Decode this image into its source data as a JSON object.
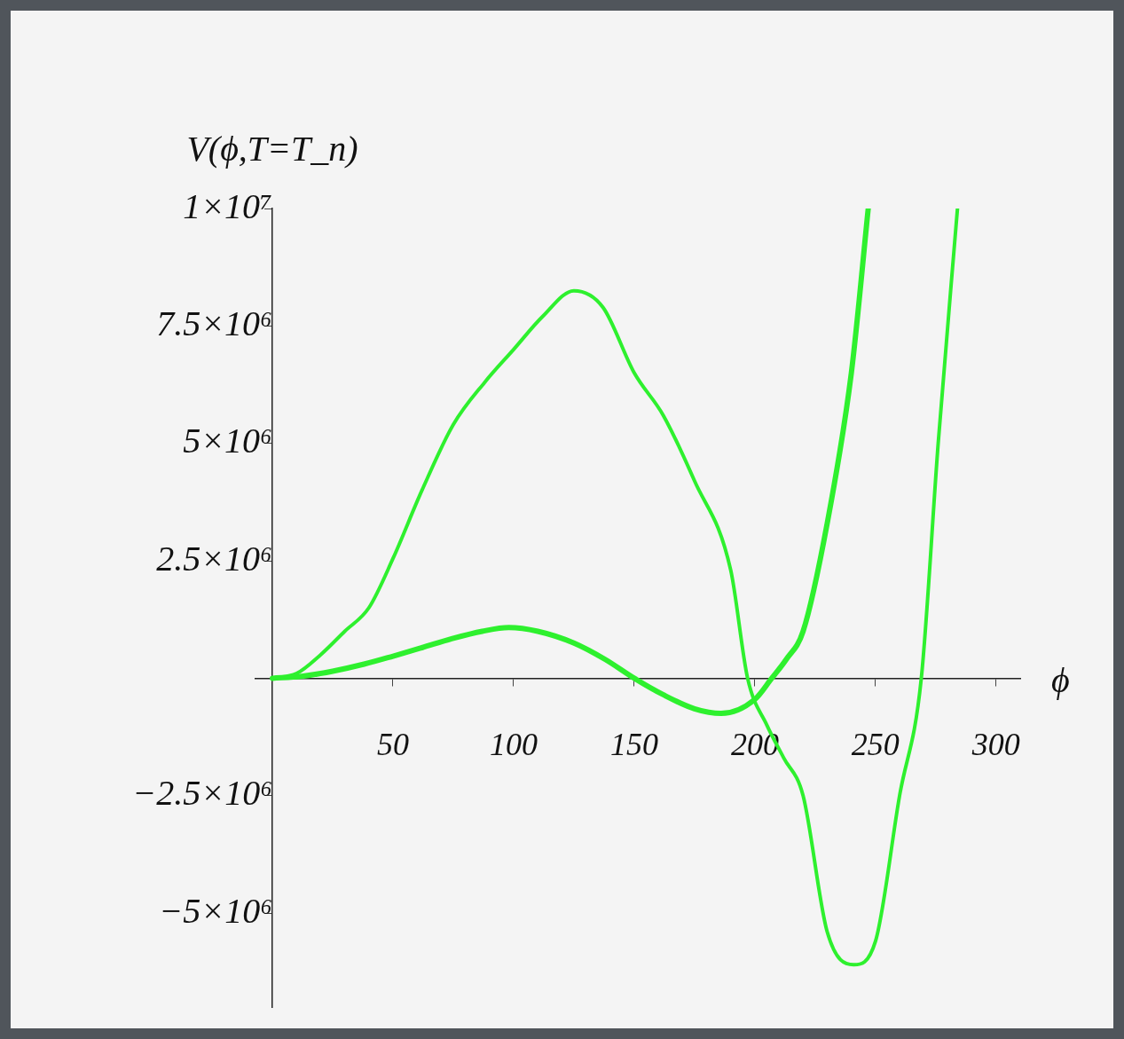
{
  "chart_data": {
    "type": "line",
    "xlabel": "ϕ",
    "ylabel": "V(ϕ,T=T_n)",
    "xlim": [
      -7,
      310
    ],
    "ylim": [
      -7000000,
      10000000
    ],
    "xticks": [
      50,
      100,
      150,
      200,
      250,
      300
    ],
    "yticks": [
      {
        "value": -5000000,
        "label": "−5×10⁶"
      },
      {
        "value": -2500000,
        "label": "−2.5×10⁶"
      },
      {
        "value": 2500000,
        "label": "2.5×10⁶"
      },
      {
        "value": 5000000,
        "label": "5×10⁶"
      },
      {
        "value": 7500000,
        "label": "7.5×10⁶"
      },
      {
        "value": 10000000,
        "label": "1×10⁷"
      }
    ],
    "grid": false,
    "legend": false,
    "marker": "none",
    "line_style": "solid",
    "series": [
      {
        "color": "#2ef02e",
        "x": [
          0,
          10,
          20,
          30,
          40,
          50,
          62,
          75,
          88,
          100,
          112,
          125,
          137,
          150,
          162,
          175,
          190,
          197,
          205,
          212,
          220,
          230,
          241,
          250,
          260,
          269,
          276,
          284
        ],
        "values": [
          0,
          100000,
          500000,
          1000000,
          1500000,
          2550000,
          4000000,
          5400000,
          6300000,
          7000000,
          7700000,
          8250000,
          7900000,
          6500000,
          5600000,
          4200000,
          2300000,
          0,
          -1000000,
          -1700000,
          -2500000,
          -5400000,
          -6100000,
          -5600000,
          -2500000,
          0,
          5000000,
          10000000
        ]
      },
      {
        "color": "#2ef02e",
        "x": [
          0,
          12,
          25,
          38,
          50,
          62,
          75,
          87,
          98,
          110,
          125,
          138,
          150,
          162,
          175,
          186,
          200,
          207,
          213,
          220,
          230,
          240,
          247
        ],
        "values": [
          0,
          40000,
          150000,
          300000,
          470000,
          650000,
          850000,
          1000000,
          1080000,
          1000000,
          750000,
          400000,
          0,
          -350000,
          -650000,
          -750000,
          -450000,
          0,
          400000,
          1000000,
          3300000,
          6500000,
          10000000
        ]
      }
    ]
  }
}
